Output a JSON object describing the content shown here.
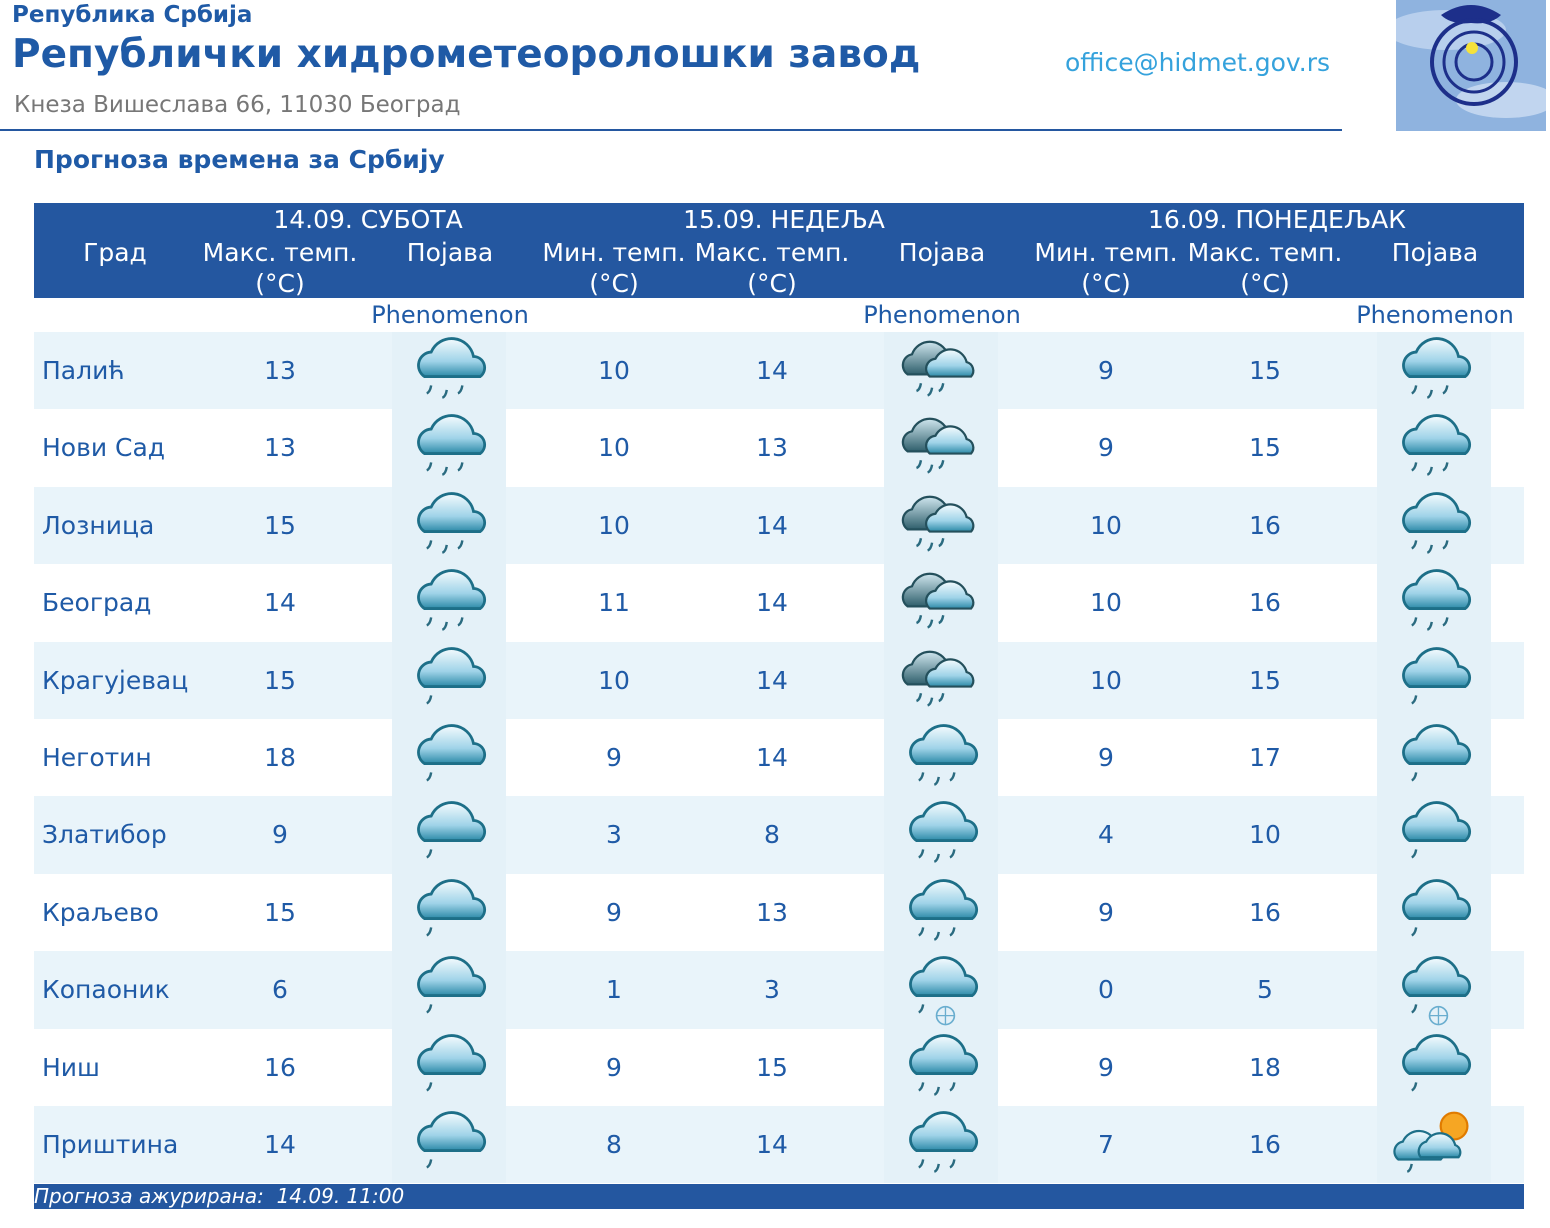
{
  "header": {
    "republic": "Република Србија",
    "title": "Републички хидрометеоролошки завод",
    "address": "Кнеза Вишеслава 66, 11030 Београд",
    "email": "office@hidmet.gov.rs"
  },
  "subtitle": "Прогноза времена за Србију",
  "table": {
    "days": [
      "14.09. СУБОТА",
      "15.09. НЕДЕЉА",
      "16.09. ПОНЕДЕЉАК"
    ],
    "columns": [
      "Град",
      "Макс. темп.\n(°C)",
      "Појава",
      "Мин. темп.\n(°C)",
      "Макс. темп.\n(°C)",
      "Појава",
      "Мин. темп.\n(°C)",
      "Макс. темп.\n(°C)",
      "Појава"
    ],
    "phenomenon": "Phenomenon",
    "rows": [
      [
        "Палић",
        13,
        10,
        14,
        9,
        15
      ],
      [
        "Нови Сад",
        13,
        10,
        13,
        9,
        15
      ],
      [
        "Лозница",
        15,
        10,
        14,
        10,
        16
      ],
      [
        "Београд",
        14,
        11,
        14,
        10,
        16
      ],
      [
        "Крагујевац",
        15,
        10,
        14,
        10,
        15
      ],
      [
        "Неготин",
        18,
        9,
        14,
        9,
        17
      ],
      [
        "Златибор",
        9,
        3,
        8,
        4,
        10
      ],
      [
        "Краљево",
        15,
        9,
        13,
        9,
        16
      ],
      [
        "Копаоник",
        6,
        1,
        3,
        0,
        5
      ],
      [
        "Ниш",
        16,
        9,
        15,
        9,
        18
      ],
      [
        "Приштина",
        14,
        8,
        14,
        7,
        16
      ]
    ]
  },
  "footer": "Прогноза ажурирана:  14.09. 11:00"
}
